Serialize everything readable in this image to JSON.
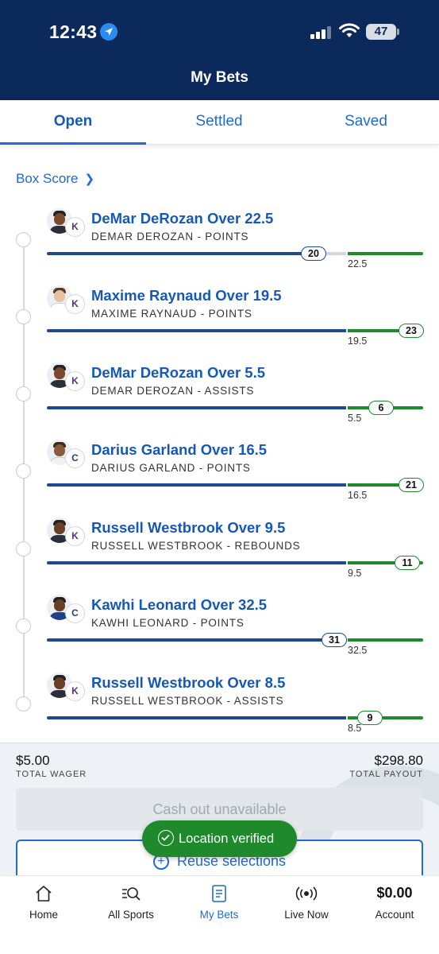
{
  "status_bar": {
    "time": "12:43",
    "battery": "47"
  },
  "header": {
    "title": "My Bets"
  },
  "tabs": [
    {
      "label": "Open",
      "active": true
    },
    {
      "label": "Settled",
      "active": false
    },
    {
      "label": "Saved",
      "active": false
    }
  ],
  "box_score": {
    "label": "Box Score"
  },
  "legs": [
    {
      "title": "DeMar DeRozan Over 22.5",
      "subtitle": "DEMAR DEROZAN - POINTS",
      "line": "22.5",
      "current": "20",
      "team_logo": "sacramento-kings"
    },
    {
      "title": "Maxime Raynaud Over 19.5",
      "subtitle": "MAXIME RAYNAUD - POINTS",
      "line": "19.5",
      "current": "23",
      "team_logo": "sacramento-kings"
    },
    {
      "title": "DeMar DeRozan Over 5.5",
      "subtitle": "DEMAR DEROZAN - ASSISTS",
      "line": "5.5",
      "current": "6",
      "team_logo": "sacramento-kings"
    },
    {
      "title": "Darius Garland Over 16.5",
      "subtitle": "DARIUS GARLAND - POINTS",
      "line": "16.5",
      "current": "21",
      "team_logo": "la-clippers"
    },
    {
      "title": "Russell Westbrook Over 9.5",
      "subtitle": "RUSSELL WESTBROOK - REBOUNDS",
      "line": "9.5",
      "current": "11",
      "team_logo": "sacramento-kings"
    },
    {
      "title": "Kawhi Leonard Over 32.5",
      "subtitle": "KAWHI LEONARD - POINTS",
      "line": "32.5",
      "current": "31",
      "team_logo": "la-clippers"
    },
    {
      "title": "Russell Westbrook Over 8.5",
      "subtitle": "RUSSELL WESTBROOK - ASSISTS",
      "line": "8.5",
      "current": "9",
      "team_logo": "sacramento-kings"
    }
  ],
  "summary": {
    "total_wager": "$5.00",
    "total_wager_label": "TOTAL WAGER",
    "total_payout": "$298.80",
    "total_payout_label": "TOTAL PAYOUT",
    "cashout_label": "Cash out unavailable",
    "reuse_label": "Reuse selections"
  },
  "toast": {
    "label": "Location verified"
  },
  "bottom_nav": [
    {
      "label": "Home",
      "icon": "home-icon"
    },
    {
      "label": "All Sports",
      "icon": "search-sports-icon"
    },
    {
      "label": "My Bets",
      "icon": "bet-slip-icon",
      "active": true
    },
    {
      "label": "Live Now",
      "icon": "live-broadcast-icon"
    },
    {
      "label": "Account",
      "amount": "$0.00"
    }
  ],
  "colors": {
    "header_bg": "#0b2a5b",
    "accent_blue": "#1f6bd0",
    "progress_blue": "#1f4a8f",
    "progress_green": "#1f8a2c",
    "toast_green": "#1f8a2c"
  }
}
